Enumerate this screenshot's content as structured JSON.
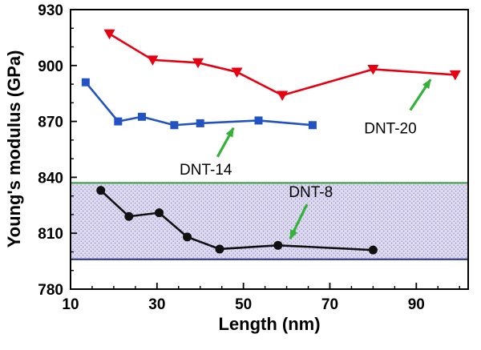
{
  "figure": {
    "background": "#ffffff"
  },
  "chart_data": {
    "type": "line",
    "title": "",
    "xlabel": "Length (nm)",
    "ylabel": "Young's modulus (GPa)",
    "xlim": [
      10,
      102
    ],
    "ylim": [
      780,
      930
    ],
    "xticks": [
      10,
      30,
      50,
      70,
      90
    ],
    "yticks": [
      780,
      810,
      840,
      870,
      900,
      930
    ],
    "x_minor_step": 5,
    "y_minor_step": 10,
    "grid": false,
    "legend": "none (inline annotated labels)",
    "series": [
      {
        "name": "DNT-20",
        "color": "#e60012",
        "marker": "triangle-down",
        "x": [
          19,
          29,
          39.5,
          48.5,
          59,
          80,
          99
        ],
        "y": [
          917,
          903,
          901.5,
          896.5,
          884,
          898,
          895
        ]
      },
      {
        "name": "DNT-14",
        "color": "#2253c3",
        "marker": "square",
        "x": [
          13.5,
          21,
          26.5,
          34,
          40,
          53.5,
          66
        ],
        "y": [
          891,
          870,
          872.5,
          868,
          869,
          870.5,
          868
        ]
      },
      {
        "name": "DNT-8",
        "color": "#111111",
        "marker": "circle",
        "x": [
          17,
          23.5,
          30.5,
          37,
          44.5,
          58,
          80
        ],
        "y": [
          833,
          819,
          821,
          808,
          801.5,
          803.5,
          801
        ]
      }
    ],
    "band": {
      "low": 796,
      "high": 837,
      "fill_base": "#dedaf0",
      "dot_color": "#8e86c2",
      "top_line_color": "#2e9e3e",
      "bottom_line_color": "#1f2d7a"
    },
    "annotation_arrow_color": "#35b13a",
    "annotations": [
      {
        "label": "DNT-20",
        "text": {
          "x": 84,
          "y": 866.5
        },
        "arrow": {
          "from": {
            "x": 88.6,
            "y": 876
          },
          "to": {
            "x": 93.3,
            "y": 892.5
          }
        }
      },
      {
        "label": "DNT-14",
        "text": {
          "x": 41.3,
          "y": 844.5
        },
        "arrow": {
          "from": {
            "x": 44,
            "y": 851
          },
          "to": {
            "x": 47.7,
            "y": 866.5
          }
        }
      },
      {
        "label": "DNT-8",
        "text": {
          "x": 65.6,
          "y": 832.5
        },
        "arrow": {
          "from": {
            "x": 64.7,
            "y": 825.5
          },
          "to": {
            "x": 60.8,
            "y": 807
          }
        }
      }
    ]
  }
}
